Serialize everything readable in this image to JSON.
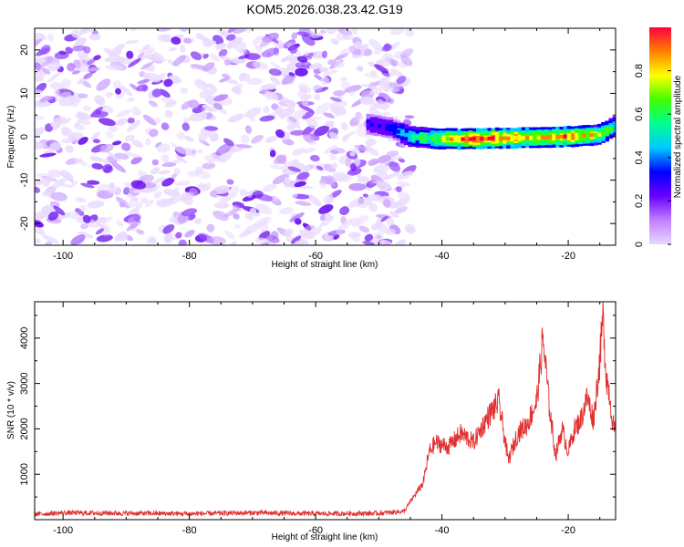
{
  "title": "KOM5.2026.038.23.42.G19",
  "chart_data": [
    {
      "type": "heatmap",
      "xlabel": "Height of straight line (km)",
      "ylabel": "Frequency (Hz)",
      "xlim": [
        -104.5,
        -12.5
      ],
      "ylim": [
        -25,
        25
      ],
      "xticks": [
        -100,
        -80,
        -60,
        -40,
        -20
      ],
      "yticks": [
        -20,
        -10,
        0,
        10,
        20
      ],
      "colorbar": {
        "label": "Normalized spectral amplitude",
        "range": [
          0,
          1
        ],
        "ticks": [
          0,
          0.2,
          0.4,
          0.6,
          0.8
        ],
        "colors": [
          "#e8d8ff",
          "#c080ff",
          "#6a00ff",
          "#0000ff",
          "#00c8ff",
          "#00ff90",
          "#40ff00",
          "#ffff00",
          "#ff8000",
          "#ff0040"
        ]
      },
      "noise_region": {
        "x_range": [
          -104.5,
          -45
        ],
        "freq_range": [
          -25,
          25
        ],
        "amplitude_range": [
          0.02,
          0.2
        ]
      },
      "signal_ridge": {
        "x": [
          -52,
          -48,
          -45,
          -40,
          -35,
          -30,
          -25,
          -20,
          -15,
          -12.5
        ],
        "freq": [
          3,
          2,
          0,
          -0.5,
          -0.5,
          -0.3,
          -0.2,
          0,
          0.5,
          2.5
        ],
        "amplitude": [
          0.3,
          0.35,
          0.5,
          0.7,
          0.95,
          0.85,
          0.75,
          0.85,
          0.7,
          0.5
        ]
      }
    },
    {
      "type": "line",
      "xlabel": "Height of straight line (km)",
      "ylabel": "SNR (10 * v/v)",
      "xlim": [
        -104.5,
        -12.5
      ],
      "ylim": [
        0,
        4800
      ],
      "xticks": [
        -100,
        -80,
        -60,
        -40,
        -20
      ],
      "yticks": [
        1000,
        2000,
        3000,
        4000
      ],
      "color": "#e03030",
      "series": [
        {
          "x": [
            -104.5,
            -100,
            -90,
            -80,
            -70,
            -60,
            -50,
            -46,
            -44.5,
            -43,
            -42,
            -41,
            -39,
            -37,
            -35,
            -33,
            -31,
            -29.5,
            -28,
            -26.5,
            -25,
            -24,
            -23,
            -22,
            -21,
            -20,
            -19,
            -18,
            -17,
            -16,
            -15,
            -14.5,
            -14,
            -13.5,
            -13,
            -12.5
          ],
          "y": [
            120,
            150,
            140,
            130,
            150,
            130,
            140,
            180,
            500,
            800,
            1500,
            1700,
            1600,
            1900,
            1700,
            2200,
            2600,
            1300,
            1900,
            2100,
            2600,
            4000,
            2500,
            1400,
            2000,
            1500,
            2000,
            2200,
            2700,
            2200,
            3500,
            4500,
            3200,
            2800,
            2200,
            1800
          ]
        }
      ]
    }
  ]
}
